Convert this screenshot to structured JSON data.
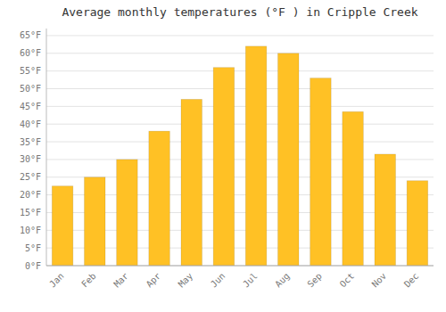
{
  "chart_data": {
    "type": "bar",
    "title": "Average monthly temperatures (°F ) in Cripple Creek",
    "categories": [
      "Jan",
      "Feb",
      "Mar",
      "Apr",
      "May",
      "Jun",
      "Jul",
      "Aug",
      "Sep",
      "Oct",
      "Nov",
      "Dec"
    ],
    "values": [
      22.5,
      25.0,
      30.0,
      38.0,
      47.0,
      56.0,
      62.0,
      60.0,
      53.0,
      43.5,
      31.5,
      24.0
    ],
    "color": "#FFC125",
    "ylim": [
      0,
      67
    ],
    "yticks": [
      {
        "value": 0,
        "label": "0°F"
      },
      {
        "value": 5,
        "label": "5°F"
      },
      {
        "value": 10,
        "label": "10°F"
      },
      {
        "value": 15,
        "label": "15°F"
      },
      {
        "value": 20,
        "label": "20°F"
      },
      {
        "value": 25,
        "label": "25°F"
      },
      {
        "value": 30,
        "label": "30°F"
      },
      {
        "value": 35,
        "label": "35°F"
      },
      {
        "value": 40,
        "label": "40°F"
      },
      {
        "value": 45,
        "label": "45°F"
      },
      {
        "value": 50,
        "label": "50°F"
      },
      {
        "value": 55,
        "label": "55°F"
      },
      {
        "value": 60,
        "label": "60°F"
      },
      {
        "value": 65,
        "label": "65°F"
      }
    ],
    "grid": true
  }
}
